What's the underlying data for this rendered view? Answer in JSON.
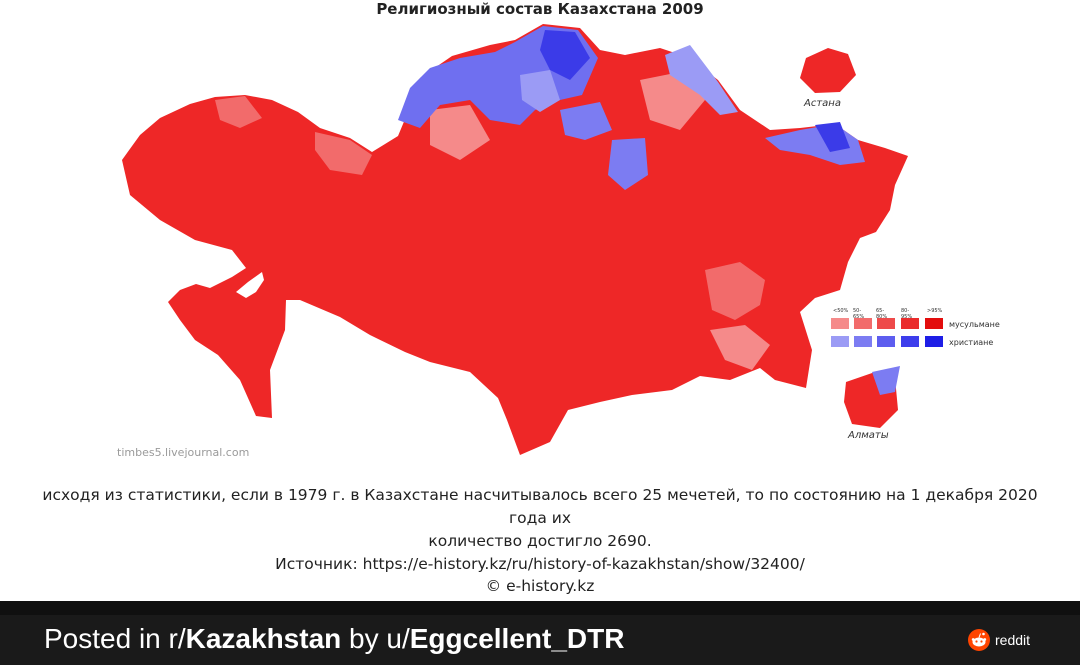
{
  "map": {
    "title": "Религиозный состав Казахстана 2009",
    "watermark": "timbes5.livejournal.com",
    "insets": {
      "astana_label": "Астана",
      "almaty_label": "Алматы"
    },
    "legend": {
      "categories": [
        "<50%",
        "50-65%",
        "65-80%",
        "80-95%",
        ">95%"
      ],
      "rows": [
        {
          "label": "мусульмане",
          "colors": [
            "#f58a8a",
            "#f26b6b",
            "#ee4a4a",
            "#ea2b2b",
            "#e30d0d"
          ]
        },
        {
          "label": "христиане",
          "colors": [
            "#9b9bf5",
            "#7c7cf2",
            "#5d5def",
            "#3d3dec",
            "#1e1ee6"
          ]
        }
      ]
    },
    "colors": {
      "muslim_main": "#ee2727",
      "muslim_light": "#f47f7f",
      "christian_main": "#6f6ff0",
      "christian_dark": "#3b3be8"
    }
  },
  "caption": {
    "line1": "исходя из статистики, если в 1979 г. в Казахстане насчитывалось всего 25 мечетей, то по состоянию на 1 декабря 2020 года их",
    "line2": "количество достигло 2690.",
    "source_line": "Источник: https://e-history.kz/ru/history-of-kazakhstan/show/32400/",
    "copyright": "© e-history.kz"
  },
  "footer": {
    "prefix": "Posted in r/",
    "subreddit": "Kazakhstan",
    "middle": " by u/",
    "username": "Eggcellent_DTR",
    "brand": "reddit",
    "colors": {
      "bar": "#1a1a1a",
      "brand": "#ff4500"
    }
  }
}
